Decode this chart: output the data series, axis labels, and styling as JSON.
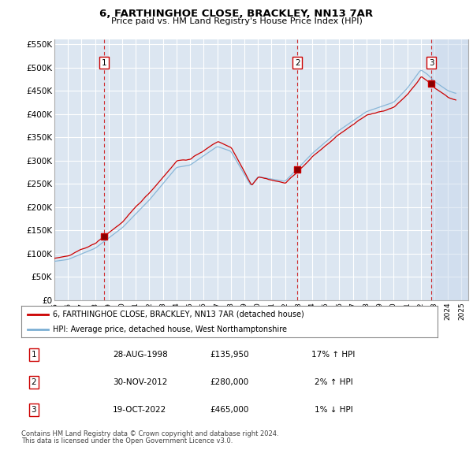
{
  "title": "6, FARTHINGHOE CLOSE, BRACKLEY, NN13 7AR",
  "subtitle": "Price paid vs. HM Land Registry's House Price Index (HPI)",
  "red_label": "6, FARTHINGHOE CLOSE, BRACKLEY, NN13 7AR (detached house)",
  "blue_label": "HPI: Average price, detached house, West Northamptonshire",
  "footer1": "Contains HM Land Registry data © Crown copyright and database right 2024.",
  "footer2": "This data is licensed under the Open Government Licence v3.0.",
  "transactions": [
    {
      "num": 1,
      "date": "28-AUG-1998",
      "price": "£135,950",
      "hpi": "17% ↑ HPI",
      "year": 1998.667,
      "price_val": 135950
    },
    {
      "num": 2,
      "date": "30-NOV-2012",
      "price": "£280,000",
      "hpi": "2% ↑ HPI",
      "year": 2012.917,
      "price_val": 280000
    },
    {
      "num": 3,
      "date": "19-OCT-2022",
      "price": "£465,000",
      "hpi": "1% ↓ HPI",
      "year": 2022.792,
      "price_val": 465000
    }
  ],
  "ylim": [
    0,
    560000
  ],
  "yticks": [
    0,
    50000,
    100000,
    150000,
    200000,
    250000,
    300000,
    350000,
    400000,
    450000,
    500000,
    550000
  ],
  "ytick_labels": [
    "£0",
    "£50K",
    "£100K",
    "£150K",
    "£200K",
    "£250K",
    "£300K",
    "£350K",
    "£400K",
    "£450K",
    "£500K",
    "£550K"
  ],
  "xmin": 1995.0,
  "xmax": 2025.5,
  "plot_bg": "#dce6f1",
  "grid_color": "#ffffff",
  "red_color": "#cc0000",
  "blue_color": "#7bafd4",
  "shade_color": "#dce6f1",
  "border_color": "#aaaaaa"
}
